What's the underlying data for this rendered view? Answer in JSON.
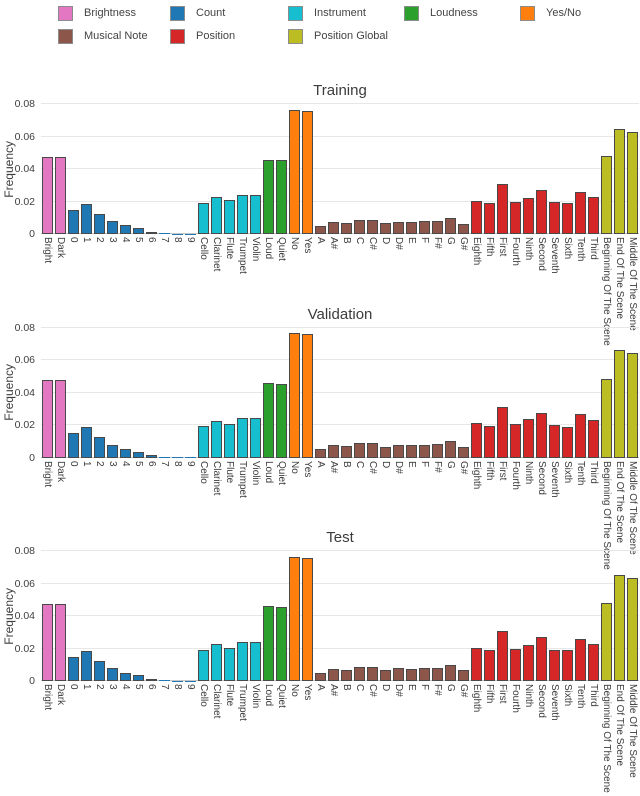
{
  "chart_data": {
    "type": "bar",
    "ylabel": "Frequency",
    "ylim": [
      0,
      0.08
    ],
    "yticks": [
      0,
      0.02,
      0.04,
      0.06,
      0.08
    ],
    "ytick_labels": [
      "0",
      "0.02",
      "0.04",
      "0.06",
      "0.08"
    ],
    "grid": "horizontal",
    "legend_position": "top-left-two-rows",
    "legend": {
      "items": [
        {
          "label": "Brightness",
          "color": "#e377c2"
        },
        {
          "label": "Count",
          "color": "#1f77b4"
        },
        {
          "label": "Instrument",
          "color": "#17becf"
        },
        {
          "label": "Loudness",
          "color": "#2ca02c"
        },
        {
          "label": "Yes/No",
          "color": "#ff7f0e"
        },
        {
          "label": "Musical Note",
          "color": "#8c564b"
        },
        {
          "label": "Position",
          "color": "#d62728"
        },
        {
          "label": "Position Global",
          "color": "#bcbd22"
        }
      ]
    },
    "categories": [
      "Bright",
      "Dark",
      "0",
      "1",
      "2",
      "3",
      "4",
      "5",
      "6",
      "7",
      "8",
      "9",
      "Cello",
      "Clarinet",
      "Flute",
      "Trumpet",
      "Violin",
      "Loud",
      "Quiet",
      "No",
      "Yes",
      "A",
      "A#",
      "B",
      "C",
      "C#",
      "D",
      "D#",
      "E",
      "F",
      "F#",
      "G",
      "G#",
      "Eighth",
      "Fifth",
      "First",
      "Fourth",
      "Ninth",
      "Second",
      "Seventh",
      "Sixth",
      "Tenth",
      "Third",
      "Beginning Of The Scene",
      "End Of The Scene",
      "Middle Of The Scene"
    ],
    "category_groups": [
      "Brightness",
      "Brightness",
      "Count",
      "Count",
      "Count",
      "Count",
      "Count",
      "Count",
      "Count",
      "Count",
      "Count",
      "Count",
      "Instrument",
      "Instrument",
      "Instrument",
      "Instrument",
      "Instrument",
      "Loudness",
      "Loudness",
      "Yes/No",
      "Yes/No",
      "Musical Note",
      "Musical Note",
      "Musical Note",
      "Musical Note",
      "Musical Note",
      "Musical Note",
      "Musical Note",
      "Musical Note",
      "Musical Note",
      "Musical Note",
      "Musical Note",
      "Musical Note",
      "Position",
      "Position",
      "Position",
      "Position",
      "Position",
      "Position",
      "Position",
      "Position",
      "Position",
      "Position",
      "Position Global",
      "Position Global",
      "Position Global"
    ],
    "palette": {
      "Brightness": "#e377c2",
      "Count": "#1f77b4",
      "Instrument": "#17becf",
      "Loudness": "#2ca02c",
      "Yes/No": "#ff7f0e",
      "Musical Note": "#8c564b",
      "Position": "#d62728",
      "Position Global": "#bcbd22"
    },
    "subplots": [
      {
        "title": "Training",
        "values": [
          0.0473,
          0.0475,
          0.015,
          0.0185,
          0.0123,
          0.0079,
          0.0054,
          0.0034,
          0.0014,
          0.0006,
          0.0003,
          0.0001,
          0.019,
          0.0226,
          0.0207,
          0.0242,
          0.024,
          0.0458,
          0.0456,
          0.0766,
          0.0758,
          0.005,
          0.0073,
          0.0066,
          0.0086,
          0.0088,
          0.0065,
          0.0077,
          0.0077,
          0.0078,
          0.008,
          0.0099,
          0.0064,
          0.0206,
          0.019,
          0.0305,
          0.0199,
          0.0223,
          0.027,
          0.0194,
          0.0188,
          0.026,
          0.0227,
          0.0481,
          0.0648,
          0.063
        ]
      },
      {
        "title": "Validation",
        "values": [
          0.0474,
          0.0478,
          0.0151,
          0.0186,
          0.0124,
          0.008,
          0.0053,
          0.0035,
          0.0013,
          0.0005,
          0.0002,
          0.0001,
          0.0191,
          0.0224,
          0.0209,
          0.0243,
          0.0241,
          0.0457,
          0.0455,
          0.0767,
          0.076,
          0.0051,
          0.0075,
          0.0068,
          0.0089,
          0.0088,
          0.0067,
          0.0079,
          0.0079,
          0.0079,
          0.0084,
          0.0101,
          0.0066,
          0.0213,
          0.0192,
          0.031,
          0.0204,
          0.0235,
          0.0276,
          0.0198,
          0.019,
          0.0266,
          0.0231,
          0.0486,
          0.0659,
          0.0643
        ]
      },
      {
        "title": "Test",
        "values": [
          0.0473,
          0.0477,
          0.0149,
          0.0184,
          0.0124,
          0.0081,
          0.0052,
          0.0034,
          0.0013,
          0.0004,
          0.0002,
          0.0001,
          0.019,
          0.0228,
          0.0205,
          0.0243,
          0.0242,
          0.0459,
          0.0455,
          0.0764,
          0.0757,
          0.0051,
          0.0074,
          0.0067,
          0.0085,
          0.0089,
          0.0066,
          0.0081,
          0.0076,
          0.0079,
          0.0083,
          0.01,
          0.0066,
          0.0203,
          0.0189,
          0.0307,
          0.0198,
          0.0224,
          0.0271,
          0.0192,
          0.0189,
          0.0259,
          0.0228,
          0.0482,
          0.0653,
          0.0634
        ]
      }
    ]
  }
}
